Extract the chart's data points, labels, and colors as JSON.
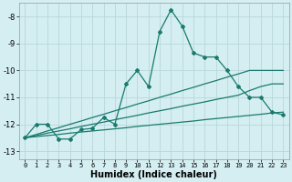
{
  "xlabel": "Humidex (Indice chaleur)",
  "bg_color": "#d4eef1",
  "grid_color": "#b8d8dc",
  "line_color": "#1a7a6e",
  "x": [
    0,
    1,
    2,
    3,
    4,
    5,
    6,
    7,
    8,
    9,
    10,
    11,
    12,
    13,
    14,
    15,
    16,
    17,
    18,
    19,
    20,
    21,
    22,
    23
  ],
  "y_main": [
    -12.5,
    -12.0,
    -12.0,
    -12.55,
    -12.55,
    -12.2,
    -12.15,
    -11.75,
    -12.0,
    -10.5,
    -10.0,
    -10.6,
    -8.55,
    -7.75,
    -8.35,
    -9.35,
    -9.5,
    -9.5,
    -10.0,
    -10.6,
    -11.0,
    -11.0,
    -11.55,
    -11.65
  ],
  "y_line1": [
    -12.5,
    -12.38,
    -12.25,
    -12.13,
    -12.0,
    -11.88,
    -11.75,
    -11.63,
    -11.5,
    -11.38,
    -11.25,
    -11.13,
    -11.0,
    -10.88,
    -10.75,
    -10.63,
    -10.5,
    -10.38,
    -10.25,
    -10.13,
    -10.0,
    -10.0,
    -10.0,
    -10.0
  ],
  "y_line2": [
    -12.5,
    -12.42,
    -12.33,
    -12.25,
    -12.17,
    -12.08,
    -12.0,
    -11.92,
    -11.83,
    -11.75,
    -11.67,
    -11.58,
    -11.5,
    -11.42,
    -11.33,
    -11.25,
    -11.17,
    -11.08,
    -11.0,
    -10.92,
    -10.75,
    -10.6,
    -10.5,
    -10.5
  ],
  "y_line3": [
    -12.5,
    -12.46,
    -12.42,
    -12.38,
    -12.33,
    -12.29,
    -12.25,
    -12.21,
    -12.17,
    -12.13,
    -12.08,
    -12.04,
    -12.0,
    -11.96,
    -11.92,
    -11.88,
    -11.83,
    -11.79,
    -11.75,
    -11.71,
    -11.67,
    -11.63,
    -11.58,
    -11.55
  ],
  "ylim": [
    -13.3,
    -7.5
  ],
  "xlim": [
    -0.5,
    23.5
  ],
  "yticks": [
    -13,
    -12,
    -11,
    -10,
    -9,
    -8
  ],
  "xticks": [
    0,
    1,
    2,
    3,
    4,
    5,
    6,
    7,
    8,
    9,
    10,
    11,
    12,
    13,
    14,
    15,
    16,
    17,
    18,
    19,
    20,
    21,
    22,
    23
  ]
}
